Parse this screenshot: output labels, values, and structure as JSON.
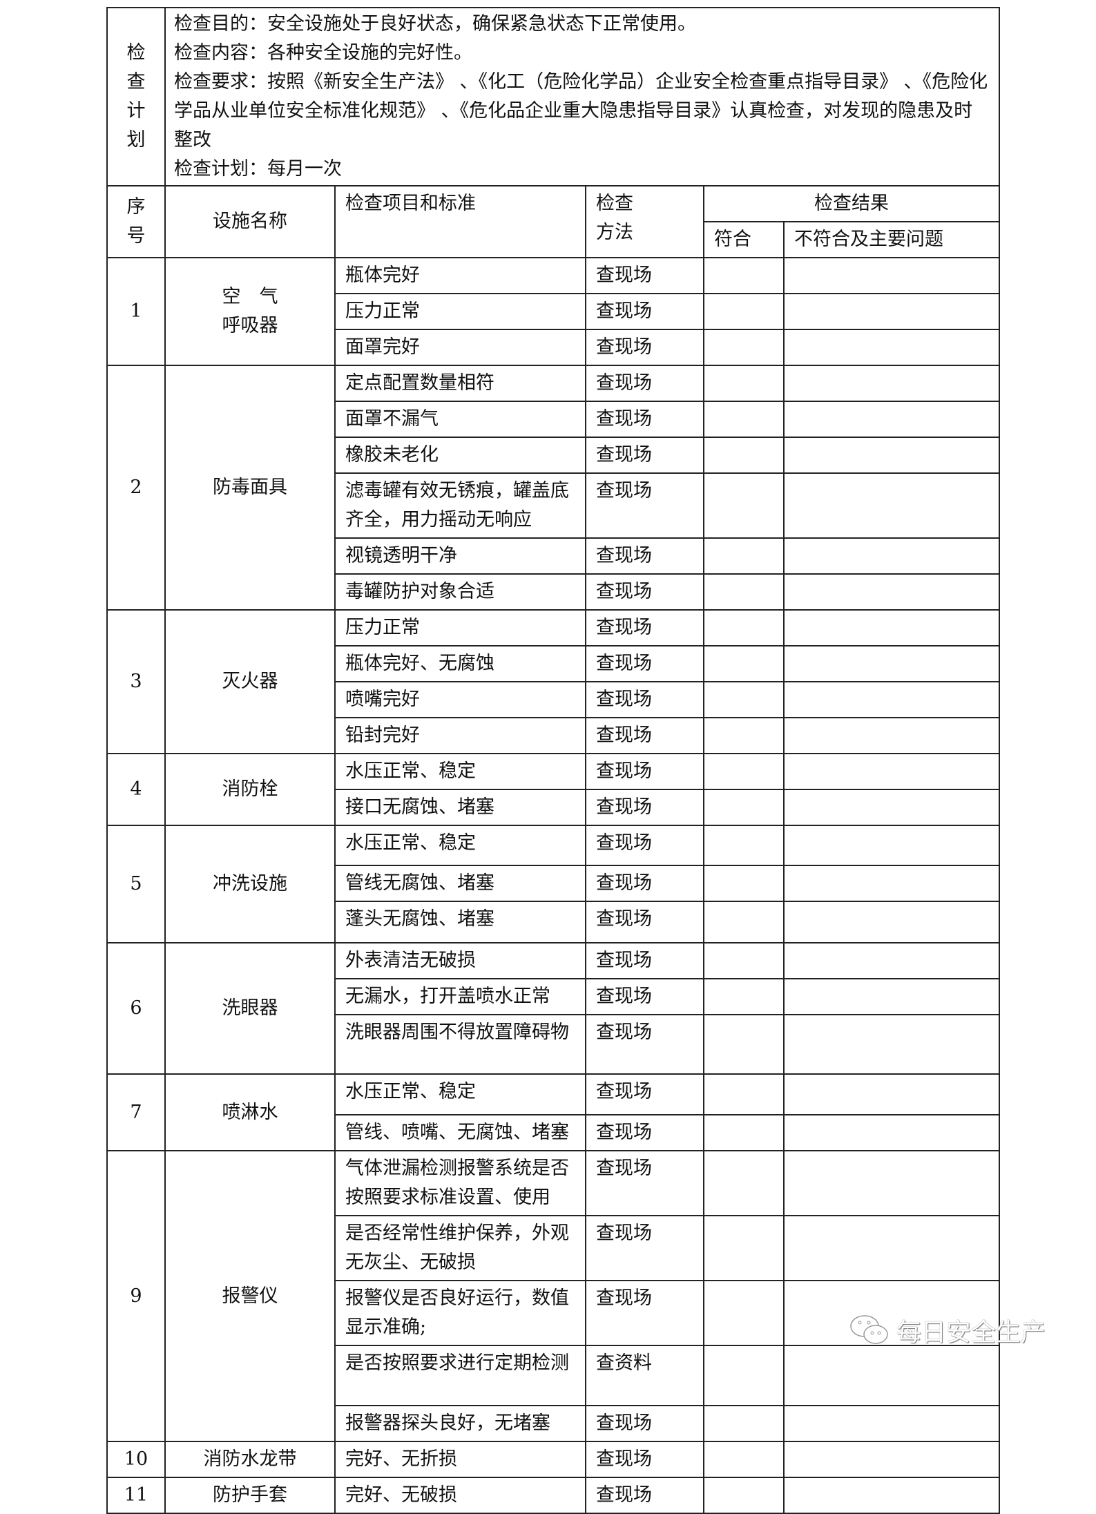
{
  "plan": {
    "label": "检查计划",
    "lines": [
      "检查目的：安全设施处于良好状态，确保紧急状态下正常使用。",
      "检查内容：各种安全设施的完好性。",
      "检查要求：按照《新安全生产法》 、《化工（危险化学品）企业安全检查重点指导目录》 、《危险化学品从业单位安全标准化规范》 、《危化品企业重大隐患指导目录》认真检查，对发现的隐患及时整改",
      "检查计划：每月一次"
    ]
  },
  "headers": {
    "seq": "序号",
    "name": "设施名称",
    "item": "检查项目和标准",
    "method": "检查方法",
    "result": "检查结果",
    "conform": "符合",
    "nonconform": "不符合及主要问题"
  },
  "groups": [
    {
      "seq": "1",
      "name": "空　气\n呼吸器",
      "items": [
        [
          "瓶体完好",
          "查现场"
        ],
        [
          "压力正常",
          "查现场"
        ],
        [
          "面罩完好",
          "查现场"
        ]
      ]
    },
    {
      "seq": "2",
      "name": "防毒面具",
      "items": [
        [
          "定点配置数量相符",
          "查现场"
        ],
        [
          "面罩不漏气",
          "查现场"
        ],
        [
          "橡胶未老化",
          "查现场"
        ],
        [
          "滤毒罐有效无锈痕，罐盖底齐全，用力摇动无响应",
          "查现场"
        ],
        [
          "视镜透明干净",
          "查现场"
        ],
        [
          "毒罐防护对象合适",
          "查现场"
        ]
      ]
    },
    {
      "seq": "3",
      "name": "灭火器",
      "items": [
        [
          "压力正常",
          "查现场"
        ],
        [
          "瓶体完好、无腐蚀",
          "查现场"
        ],
        [
          "喷嘴完好",
          "查现场"
        ],
        [
          "铅封完好",
          "查现场"
        ]
      ]
    },
    {
      "seq": "4",
      "name": "消防栓",
      "items": [
        [
          "水压正常、稳定",
          "查现场"
        ],
        [
          "接口无腐蚀、堵塞",
          "查现场"
        ]
      ]
    },
    {
      "seq": "5",
      "name": "冲洗设施",
      "items": [
        [
          "水压正常、稳定",
          "查现场"
        ],
        [
          "管线无腐蚀、堵塞",
          "查现场"
        ],
        [
          "蓬头无腐蚀、堵塞",
          "查现场"
        ]
      ]
    },
    {
      "seq": "6",
      "name": "洗眼器",
      "items": [
        [
          "外表清洁无破损",
          "查现场"
        ],
        [
          "无漏水，打开盖喷水正常",
          "查现场"
        ],
        [
          "洗眼器周围不得放置障碍物",
          "查现场"
        ]
      ]
    },
    {
      "seq": "7",
      "name": "喷淋水",
      "items": [
        [
          "水压正常、稳定",
          "查现场"
        ],
        [
          "管线、喷嘴、无腐蚀、堵塞",
          "查现场"
        ]
      ]
    },
    {
      "seq": "9",
      "name": "报警仪",
      "items": [
        [
          "气体泄漏检测报警系统是否按照要求标准设置、使用",
          "查现场"
        ],
        [
          "是否经常性维护保养，外观无灰尘、无破损",
          "查现场"
        ],
        [
          "报警仪是否良好运行，数值显示准确;",
          "查现场"
        ],
        [
          "是否按照要求进行定期检测",
          "查资料"
        ],
        [
          "报警器探头良好，无堵塞",
          "查现场"
        ]
      ]
    },
    {
      "seq": "10",
      "name": "消防水龙带",
      "items": [
        [
          "完好、无折损",
          "查现场"
        ]
      ]
    },
    {
      "seq": "11",
      "name": "防护手套",
      "items": [
        [
          "完好、无破损",
          "查现场"
        ]
      ]
    }
  ],
  "watermark": "每日安全生产"
}
